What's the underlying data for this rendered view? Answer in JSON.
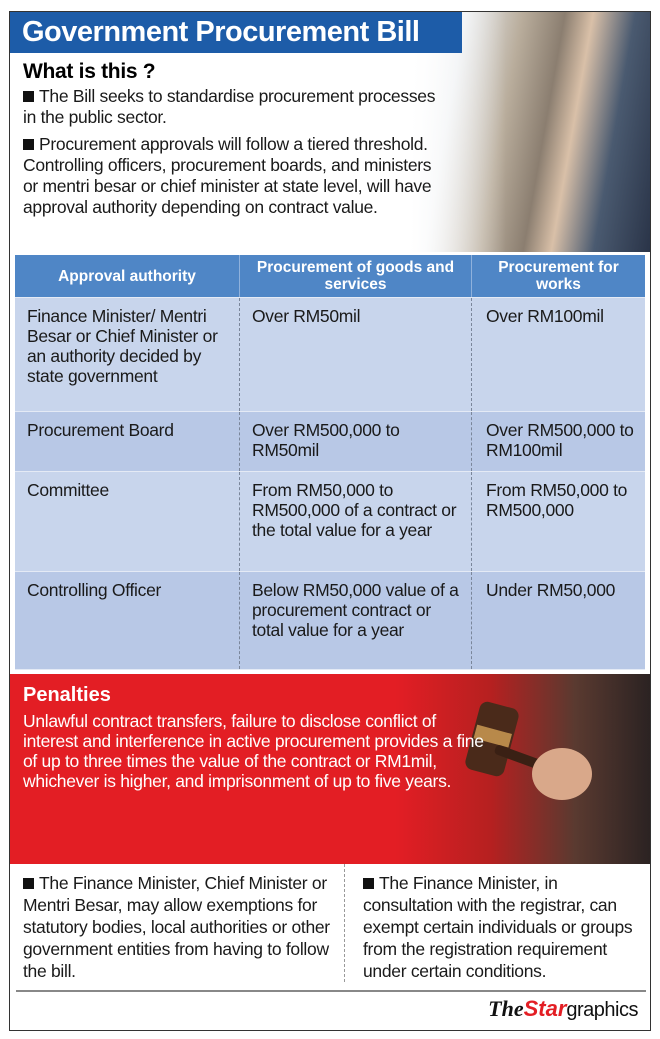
{
  "title": "Government Procurement Bill",
  "what": {
    "heading": "What is this ?",
    "points": [
      "The Bill seeks to standardise procurement processes in the public sector.",
      "Procurement approvals will follow a tiered threshold. Controlling officers, procurement boards, and ministers or mentri besar or chief minister at state level, will have approval authority depending on contract value."
    ]
  },
  "table": {
    "headers": [
      "Approval authority",
      "Procurement of goods and services",
      "Procurement for works"
    ],
    "rows": [
      [
        "Finance Minister/ Mentri Besar or Chief Minister or an authority decided by state government",
        "Over RM50mil",
        "Over RM100mil"
      ],
      [
        "Procurement Board",
        "Over RM500,000 to RM50mil",
        "Over RM500,000 to RM100mil"
      ],
      [
        "Committee",
        "From RM50,000 to RM500,000 of a contract or the total value for a year",
        "From RM50,000 to RM500,000"
      ],
      [
        "Controlling Officer",
        "Below RM50,000 value of a procurement contract or total value for a year",
        "Under RM50,000"
      ]
    ]
  },
  "penalties": {
    "heading": "Penalties",
    "text": "Unlawful contract transfers, failure to disclose conflict of interest and interference in active procurement provides a fine of up to three times the value of the contract or RM1mil, whichever is higher, and imprisonment of up to five years."
  },
  "notes": [
    "The Finance Minister, Chief Minister or Mentri Besar, may allow exemptions for statutory bodies, local authorities or other government entities from having to follow the bill.",
    "The Finance Minister, in consultation with the registrar, can exempt certain individuals or groups from the registration requirement under certain conditions."
  ],
  "logo": {
    "the": "The",
    "star": "Star",
    "graphics": "graphics"
  },
  "colors": {
    "title_blue": "#1d5ca8",
    "header_blue": "#4f86c6",
    "row_blue": "#c8d5ec",
    "penalty_red": "#e31e24"
  }
}
